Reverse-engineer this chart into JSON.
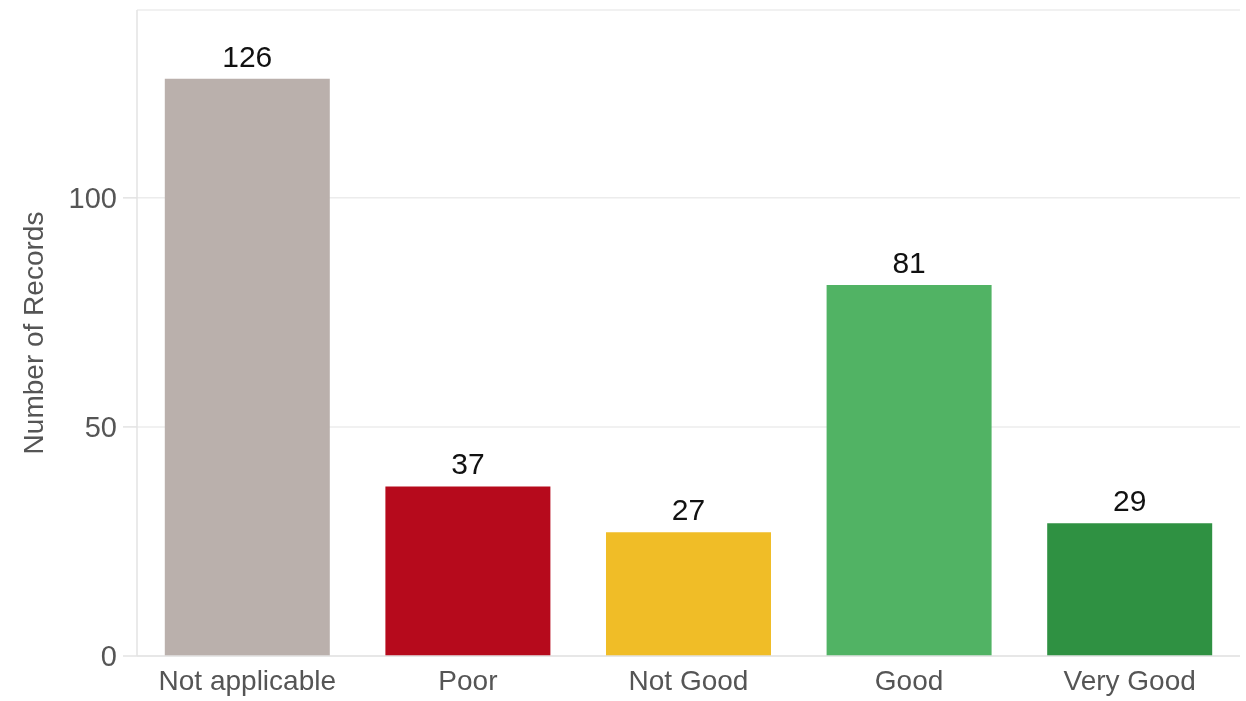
{
  "chart_data": {
    "type": "bar",
    "ylabel": "Number of Records",
    "categories": [
      "Not applicable",
      "Poor",
      "Not Good",
      "Good",
      "Very Good"
    ],
    "values": [
      126,
      37,
      27,
      81,
      29
    ],
    "colors": [
      "#bab0ac",
      "#b60a1c",
      "#f0bd27",
      "#51b364",
      "#2f9142"
    ],
    "ylim": [
      0,
      141
    ],
    "yticks": [
      0,
      50,
      100
    ],
    "grid": "y",
    "data_labels": true
  }
}
